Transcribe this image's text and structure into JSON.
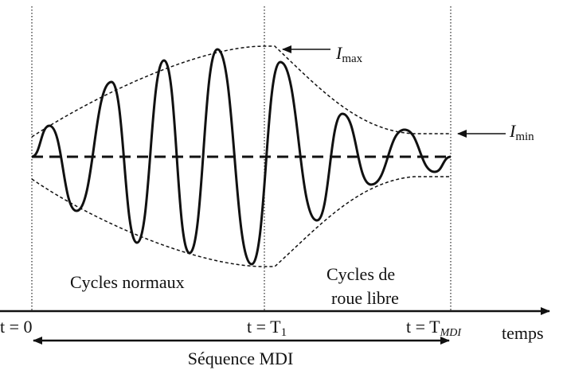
{
  "annotations": {
    "i_max": {
      "symbol": "I",
      "subscript": "max"
    },
    "i_min": {
      "symbol": "I",
      "subscript": "min"
    },
    "phase_normal": "Cycles normaux",
    "phase_free": [
      "Cycles de",
      "roue libre"
    ]
  },
  "axis": {
    "label": "temps",
    "t0": "t = 0",
    "t1": {
      "text": "t = T",
      "subscript": "1"
    },
    "tmdi": {
      "text": "t = T",
      "subscript": "MDI"
    }
  },
  "sequence": "Séquence MDI"
}
